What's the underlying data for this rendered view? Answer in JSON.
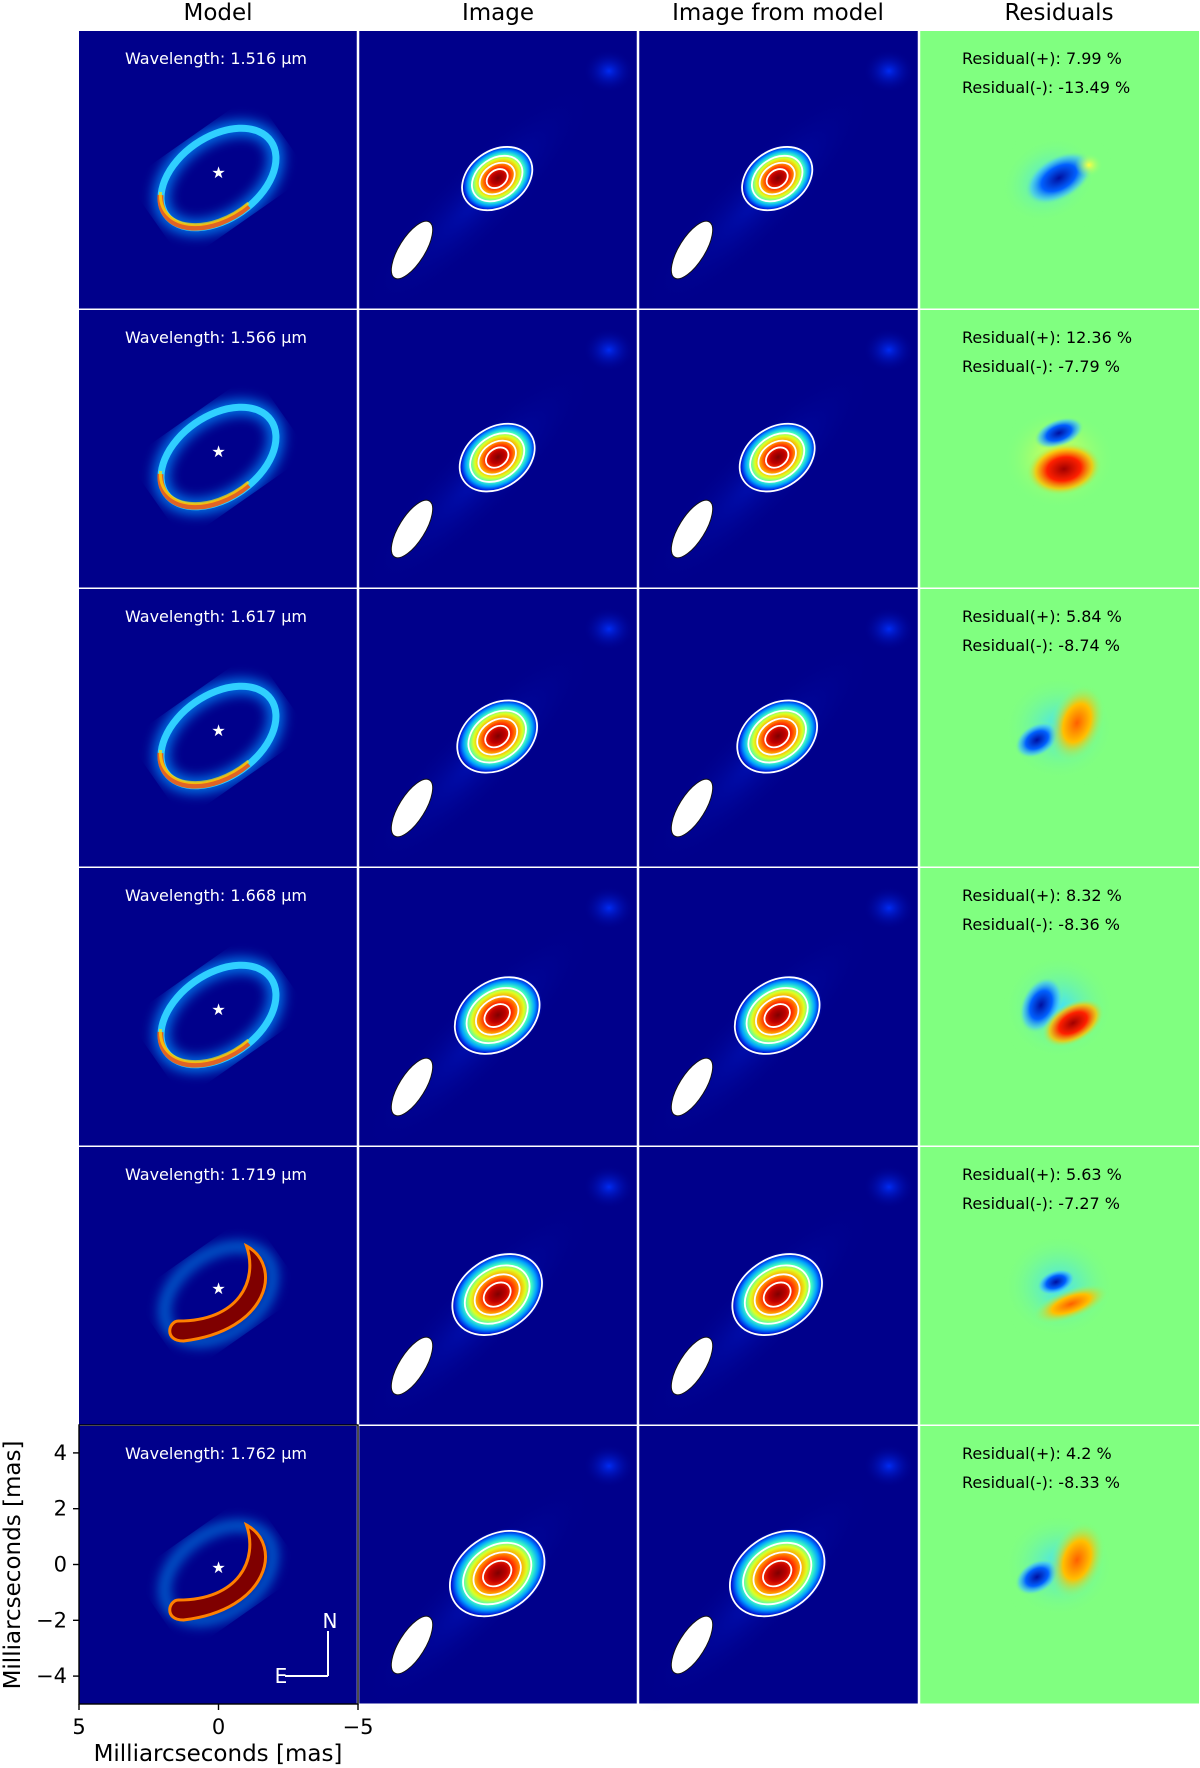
{
  "columns": [
    {
      "title": "Model"
    },
    {
      "title": "Image"
    },
    {
      "title": "Image from model"
    },
    {
      "title": "Residuals"
    }
  ],
  "rows": [
    {
      "wavelength_label": "Wavelength: 1.516 μm",
      "residual_plus": "Residual(+): 7.99 %",
      "residual_minus": "Residual(-): -13.49 %",
      "model_shape": "ring",
      "residual_pattern": "blue-center"
    },
    {
      "wavelength_label": "Wavelength: 1.566 μm",
      "residual_plus": "Residual(+): 12.36 %",
      "residual_minus": "Residual(-): -7.79 %",
      "model_shape": "ring",
      "residual_pattern": "blue-top-red-bottom"
    },
    {
      "wavelength_label": "Wavelength: 1.617 μm",
      "residual_plus": "Residual(+): 5.84 %",
      "residual_minus": "Residual(-): -8.74 %",
      "model_shape": "ring",
      "residual_pattern": "blue-left-orange-right"
    },
    {
      "wavelength_label": "Wavelength: 1.668 μm",
      "residual_plus": "Residual(+): 8.32 %",
      "residual_minus": "Residual(-): -8.36 %",
      "model_shape": "ring",
      "residual_pattern": "blue-left-red-right"
    },
    {
      "wavelength_label": "Wavelength: 1.719 μm",
      "residual_plus": "Residual(+): 5.63 %",
      "residual_minus": "Residual(-): -7.27 %",
      "model_shape": "crescent",
      "residual_pattern": "blue-top-orange-bottom"
    },
    {
      "wavelength_label": "Wavelength: 1.762 μm",
      "residual_plus": "Residual(+): 4.2 %",
      "residual_minus": "Residual(-): -8.33 %",
      "model_shape": "crescent",
      "residual_pattern": "blue-left-orange-right"
    }
  ],
  "axes": {
    "ylabel": "Milliarcseconds [mas]",
    "xlabel": "Milliarcseconds [mas]",
    "yticks": [
      "4",
      "2",
      "0",
      "−2",
      "−4"
    ],
    "xticks": [
      "5",
      "0",
      "−5"
    ]
  },
  "compass": {
    "north": "N",
    "east": "E"
  },
  "colors": {
    "background": "#00008b",
    "residual_background": "#80ff80",
    "beam": "#ffffff",
    "contour": "#ffffff"
  }
}
